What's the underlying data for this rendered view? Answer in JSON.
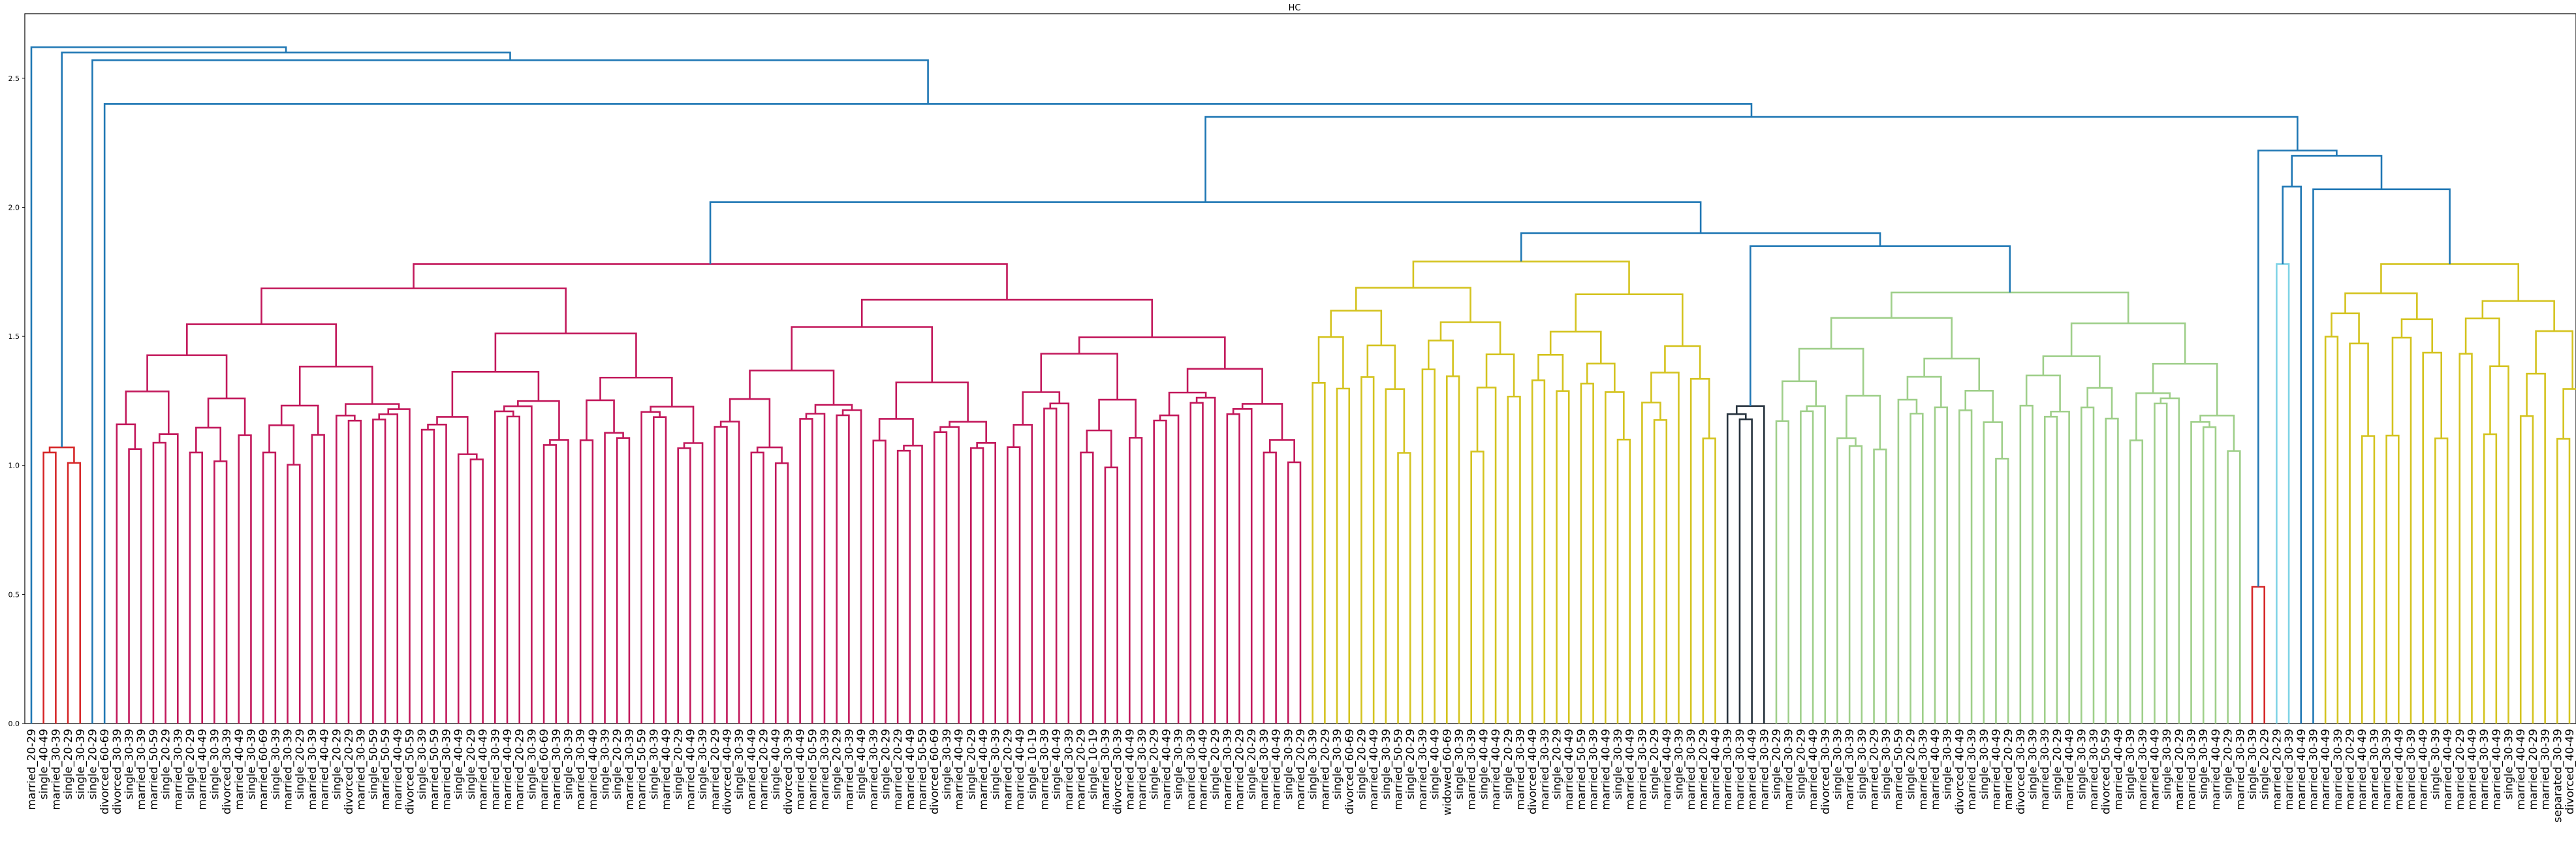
{
  "chart_data": {
    "type": "dendrogram",
    "title": "HC",
    "ylim": [
      0,
      2.75
    ],
    "yticks": [
      0.0,
      0.5,
      1.0,
      1.5,
      2.0,
      2.5
    ],
    "ytick_labels": [
      "0.0",
      "0.5",
      "1.0",
      "1.5",
      "2.0",
      "2.5"
    ],
    "grid": false,
    "cluster_colors": {
      "above": "#1f77b4",
      "c1": "#d62728",
      "c2": "#c2185b",
      "c3": "#d4c31f",
      "c4": "#26323d",
      "c5": "#9fcf8a",
      "c6": "#7fd3e6"
    },
    "leaves": [
      "married_20-29",
      "single_40-49",
      "married_30-39",
      "single_20-29",
      "single_30-39",
      "single_20-29",
      "divorced_60-69",
      "divorced_30-39",
      "single_30-39",
      "married_30-39",
      "married_50-59",
      "single_20-29",
      "married_30-39",
      "single_20-29",
      "married_40-49",
      "single_30-39",
      "divorced_30-39",
      "married_40-49",
      "single_30-39",
      "married_60-69",
      "single_30-39",
      "married_30-39",
      "single_20-29",
      "married_30-39",
      "married_40-49",
      "single_20-29",
      "divorced_20-29",
      "married_30-39",
      "single_50-59",
      "married_50-59",
      "married_40-49",
      "divorced_50-59",
      "single_30-39",
      "married_50-59",
      "married_30-39",
      "single_40-49",
      "single_20-29",
      "married_40-49",
      "married_30-39",
      "married_40-49",
      "married_20-29",
      "single_30-39",
      "married_60-69",
      "married_30-39",
      "single_30-39",
      "married_30-39",
      "married_40-49",
      "single_30-39",
      "single_20-29",
      "married_30-39",
      "married_50-59",
      "single_30-39",
      "married_40-49",
      "single_20-29",
      "married_40-49",
      "single_30-39",
      "married_20-29",
      "divorced_40-49",
      "single_30-39",
      "married_40-49",
      "married_20-29",
      "single_40-49",
      "divorced_30-39",
      "married_40-49",
      "married_50-59",
      "married_30-39",
      "single_20-29",
      "married_30-39",
      "single_40-49",
      "married_30-39",
      "single_20-29",
      "married_20-29",
      "married_40-49",
      "married_50-59",
      "divorced_60-69",
      "single_30-39",
      "married_40-49",
      "single_20-29",
      "married_40-49",
      "single_30-39",
      "married_20-29",
      "married_40-49",
      "single_10-19",
      "married_30-39",
      "single_40-49",
      "married_30-39",
      "married_20-29",
      "single_10-19",
      "married_30-39",
      "divorced_30-39",
      "married_40-49",
      "married_30-39",
      "single_20-29",
      "married_40-49",
      "single_30-39",
      "married_30-39",
      "married_40-49",
      "single_20-29",
      "married_30-39",
      "married_20-29",
      "single_20-29",
      "married_30-39",
      "married_40-49",
      "single_30-39",
      "married_20-29",
      "single_30-39",
      "married_20-29",
      "single_30-39",
      "divorced_60-69",
      "single_20-29",
      "married_40-49",
      "single_30-39",
      "married_50-59",
      "single_20-29",
      "married_30-39",
      "single_40-49",
      "widowed_60-69",
      "single_30-39",
      "married_30-39",
      "single_40-49",
      "married_40-49",
      "single_20-29",
      "married_30-39",
      "divorced_40-49",
      "married_30-39",
      "single_20-29",
      "married_40-49",
      "married_50-59",
      "married_30-39",
      "married_40-49",
      "single_30-39",
      "married_40-49",
      "married_30-39",
      "single_20-29",
      "married_40-49",
      "single_30-39",
      "married_30-39",
      "married_20-29",
      "married_40-49",
      "married_30-39",
      "married_30-39",
      "married_40-49",
      "married_30-39",
      "single_20-29",
      "married_30-39",
      "single_20-29",
      "married_40-49",
      "divorced_30-39",
      "single_30-39",
      "married_30-39",
      "single_30-39",
      "married_20-29",
      "single_30-39",
      "married_50-59",
      "single_20-29",
      "married_30-39",
      "married_40-49",
      "single_30-39",
      "divorced_40-49",
      "married_30-39",
      "single_30-39",
      "married_40-49",
      "married_20-29",
      "divorced_30-39",
      "single_30-39",
      "married_30-39",
      "single_20-29",
      "married_40-49",
      "single_30-39",
      "married_30-39",
      "divorced_50-59",
      "married_40-49",
      "single_30-39",
      "married_30-39",
      "married_40-49",
      "single_30-39",
      "married_20-29",
      "married_30-39",
      "single_30-39",
      "married_40-49",
      "single_20-29",
      "married_30-39",
      "single_30-39",
      "single_20-29",
      "married_20-29",
      "married_30-39",
      "married_40-49",
      "married_30-39",
      "married_40-49",
      "married_30-39",
      "married_20-29",
      "married_40-49",
      "married_30-39",
      "married_30-39",
      "married_40-49",
      "married_30-39",
      "married_40-49",
      "single_30-39",
      "married_40-49",
      "married_20-29",
      "married_40-49",
      "married_30-39",
      "married_40-49",
      "single_30-39",
      "married_40-49",
      "married_20-29",
      "married_30-39",
      "separated_30-39",
      "divorced_40-49"
    ],
    "color_bands": [
      {
        "cluster": "c1",
        "from": 1,
        "to": 4
      },
      {
        "cluster": "c2",
        "from": 7,
        "to": 104
      },
      {
        "cluster": "c3",
        "from": 105,
        "to": 138
      },
      {
        "cluster": "c4",
        "from": 139,
        "to": 142
      },
      {
        "cluster": "c5",
        "from": 143,
        "to": 181
      },
      {
        "cluster": "c1",
        "from": 182,
        "to": 183
      },
      {
        "cluster": "c6",
        "from": 184,
        "to": 185
      },
      {
        "cluster": "c3",
        "from": 188,
        "to": 209
      }
    ],
    "top_links": [
      {
        "a": "L0",
        "b": "N1",
        "h": 2.62
      },
      {
        "a": "N2",
        "b": "N3",
        "h": 2.57
      },
      {
        "a": "L6",
        "b": "N4",
        "h": 2.4
      },
      {
        "a": "N5",
        "b": "N6",
        "h": 2.35
      },
      {
        "a": "c2",
        "b": "N7",
        "h": 2.02
      },
      {
        "a": "N8",
        "b": "N9",
        "h": 1.9
      },
      {
        "a": "c3",
        "b": "N10",
        "h": 1.9
      },
      {
        "a": "c4",
        "b": "c5",
        "h": 1.85
      },
      {
        "a": "N11",
        "b": "N12",
        "h": 2.22
      },
      {
        "a": "c1b",
        "b": "N13",
        "h": 2.22
      },
      {
        "a": "L186",
        "b": "c6",
        "h": 2.08
      },
      {
        "a": "L187",
        "b": "c3b",
        "h": 2.07
      }
    ],
    "cluster_heights": {
      "c1": 0.87,
      "c2": 1.78,
      "c3": 1.79,
      "c4": 1.23,
      "c5": 1.67,
      "c1b": 0.53,
      "c6": 1.78,
      "c3b": 1.78
    }
  }
}
